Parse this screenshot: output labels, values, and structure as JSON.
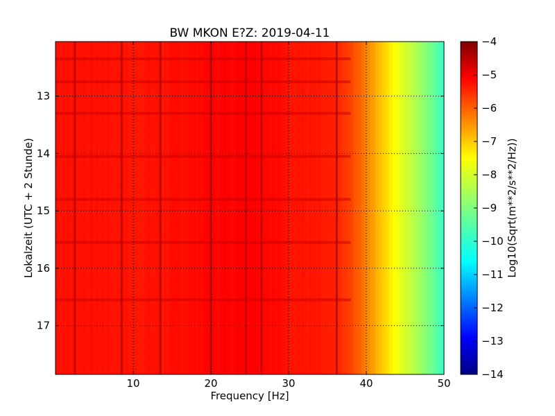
{
  "chart_data": {
    "type": "heatmap",
    "title": "BW MKON E?Z: 2019-04-11",
    "xlabel": "Frequency [Hz]",
    "ylabel": "Lokalzeit (UTC + 2 Stunde)",
    "colorbar_label": "Log10(Sqrt(m**2/s**2/Hz))",
    "xlim": [
      0,
      50
    ],
    "ylim": [
      12.05,
      17.85
    ],
    "y_inverted": true,
    "clim": [
      -14,
      -4
    ],
    "colormap": "jet",
    "grid": true,
    "grid_style": "dotted",
    "x_ticks": [
      10,
      20,
      30,
      40,
      50
    ],
    "y_ticks": [
      13,
      14,
      15,
      16,
      17
    ],
    "colorbar_ticks": [
      -4,
      -5,
      -6,
      -7,
      -8,
      -9,
      -10,
      -11,
      -12,
      -13,
      -14
    ],
    "spectrum_profile": {
      "frequency_hz": [
        0,
        5,
        10,
        15,
        20,
        25,
        30,
        34,
        36,
        38,
        40,
        42,
        44,
        46,
        48,
        50
      ],
      "log10_amplitude": [
        -5.4,
        -5.4,
        -5.45,
        -5.4,
        -5.3,
        -5.2,
        -5.4,
        -5.5,
        -5.6,
        -5.9,
        -6.5,
        -7.2,
        -7.9,
        -8.4,
        -9.0,
        -9.7
      ]
    },
    "features": {
      "vertical_lines_hz": [
        2.5,
        8.5,
        13.5,
        20,
        24.5,
        26.5,
        36.2
      ],
      "horizontal_bands_hour": [
        12.35,
        12.75,
        13.3,
        14.05,
        14.8,
        15.55,
        16.55
      ]
    }
  },
  "colors": {
    "jet": [
      "#00007f",
      "#0000ff",
      "#007fff",
      "#00ffff",
      "#7fff7f",
      "#ffff00",
      "#ff7f00",
      "#ff0000",
      "#7f0000"
    ]
  }
}
